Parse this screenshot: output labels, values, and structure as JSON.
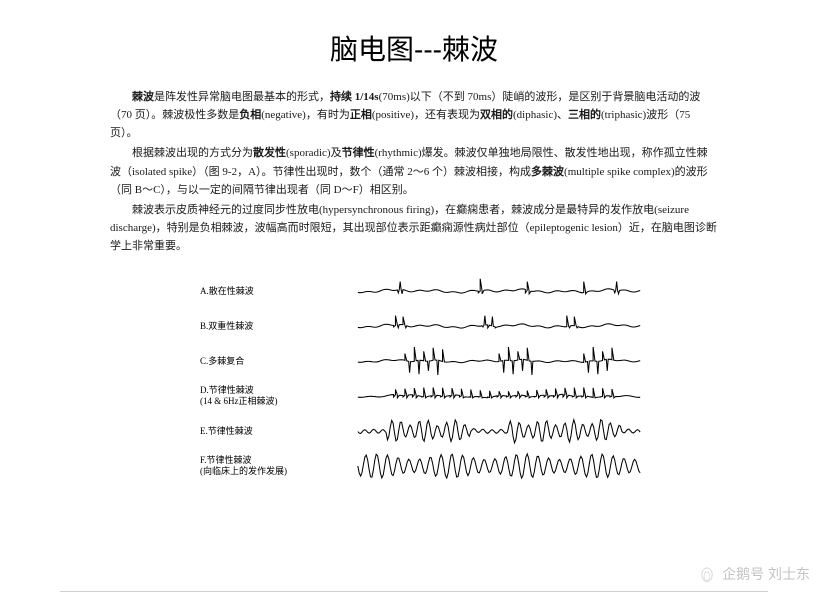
{
  "title": "脑电图---棘波",
  "paragraphs": {
    "p1_lead": "棘波",
    "p1_a": "是阵发性异常脑电图最基本的形式，",
    "p1_bold1": "持续 1/14s",
    "p1_b": "(70ms)以下（不到 70ms）陡峭的波形，是区别于背景脑电活动的波（70 页）。棘波极性多数是",
    "p1_bold2": "负相",
    "p1_c": "(negative)，有时为",
    "p1_bold3": "正相",
    "p1_d": "(positive)，还有表现为",
    "p1_bold4": "双相的",
    "p1_e": "(diphasic)、",
    "p1_bold5": "三相的",
    "p1_f": "(triphasic)波形（75 页）。",
    "p2_a": "根据棘波出现的方式分为",
    "p2_bold1": "散发性",
    "p2_b": "(sporadic)及",
    "p2_bold2": "节律性",
    "p2_c": "(rhythmic)爆发。棘波仅单独地局限性、散发性地出现，称作孤立性棘波（isolated spike）（图 9-2，A）。节律性出现时，数个（通常 2～6 个）棘波相接，构成",
    "p2_bold3": "多棘波",
    "p2_d": "(multiple spike complex)的波形（同 B～C），与以一定的间隔节律出现者（同 D～F）相区别。",
    "p3": "棘波表示皮质神经元的过度同步性放电(hypersynchronous firing)，在癫痫患者，棘波成分是最特异的发作放电(seizure discharge)，特别是负相棘波，波幅高而时限短，其出现部位表示距癫痫源性病灶部位（epileptogenic lesion）近，在脑电图诊断学上非常重要。"
  },
  "waveforms": [
    {
      "label": "A.散在性棘波",
      "type": "sporadic"
    },
    {
      "label": "B.双重性棘波",
      "type": "double"
    },
    {
      "label": "C.多棘复合",
      "type": "multispike"
    },
    {
      "label": "D.节律性棘波",
      "sublabel": "(14 & 6Hz正相棘波)",
      "type": "rhythmic_d"
    },
    {
      "label": "E.节律性棘波",
      "type": "rhythmic_e"
    },
    {
      "label": "F.节律性棘波",
      "sublabel": "(向临床上的发作发展)",
      "type": "rhythmic_f"
    }
  ],
  "watermark": {
    "text": "企鹅号 刘士东"
  },
  "style": {
    "stroke": "#000000",
    "stroke_width": 1.1
  }
}
